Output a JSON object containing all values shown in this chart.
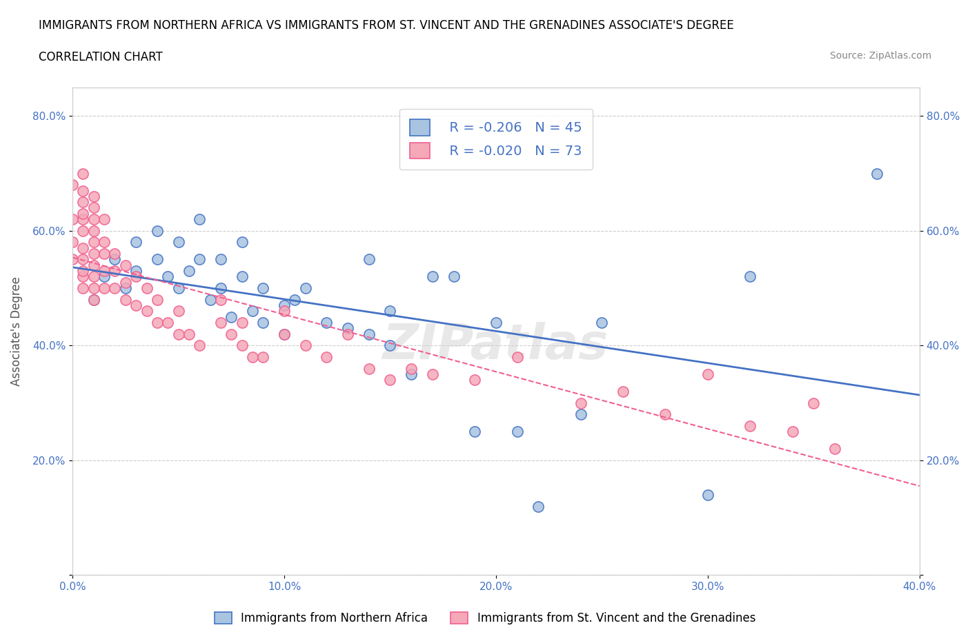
{
  "title_line1": "IMMIGRANTS FROM NORTHERN AFRICA VS IMMIGRANTS FROM ST. VINCENT AND THE GRENADINES ASSOCIATE'S DEGREE",
  "title_line2": "CORRELATION CHART",
  "source_text": "Source: ZipAtlas.com",
  "xlabel": "",
  "ylabel": "Associate's Degree",
  "xlim": [
    0.0,
    0.4
  ],
  "ylim": [
    0.0,
    0.85
  ],
  "xticks": [
    0.0,
    0.1,
    0.2,
    0.3,
    0.4
  ],
  "xticklabels": [
    "0.0%",
    "10.0%",
    "20.0%",
    "30.0%",
    "40.0%"
  ],
  "yticks": [
    0.0,
    0.2,
    0.4,
    0.6,
    0.8
  ],
  "yticklabels": [
    "",
    "20.0%",
    "40.0%",
    "60.0%",
    "80.0%"
  ],
  "color_blue": "#a8c4e0",
  "color_pink": "#f4a8b8",
  "line_blue": "#4472c4",
  "line_pink": "#f06090",
  "legend_R1": "R = -0.206",
  "legend_N1": "N = 45",
  "legend_R2": "R = -0.020",
  "legend_N2": "N = 73",
  "legend_label1": "Immigrants from Northern Africa",
  "legend_label2": "Immigrants from St. Vincent and the Grenadines",
  "watermark": "ZIPatlas",
  "R1": -0.206,
  "R2": -0.02,
  "blue_scatter_x": [
    0.01,
    0.015,
    0.02,
    0.025,
    0.03,
    0.03,
    0.04,
    0.04,
    0.045,
    0.05,
    0.05,
    0.055,
    0.06,
    0.06,
    0.065,
    0.07,
    0.07,
    0.075,
    0.08,
    0.08,
    0.085,
    0.09,
    0.09,
    0.1,
    0.1,
    0.105,
    0.11,
    0.12,
    0.13,
    0.14,
    0.14,
    0.15,
    0.15,
    0.16,
    0.17,
    0.18,
    0.19,
    0.2,
    0.21,
    0.22,
    0.24,
    0.25,
    0.3,
    0.32,
    0.38
  ],
  "blue_scatter_y": [
    0.48,
    0.52,
    0.55,
    0.5,
    0.53,
    0.58,
    0.55,
    0.6,
    0.52,
    0.5,
    0.58,
    0.53,
    0.55,
    0.62,
    0.48,
    0.5,
    0.55,
    0.45,
    0.52,
    0.58,
    0.46,
    0.44,
    0.5,
    0.47,
    0.42,
    0.48,
    0.5,
    0.44,
    0.43,
    0.42,
    0.55,
    0.4,
    0.46,
    0.35,
    0.52,
    0.52,
    0.25,
    0.44,
    0.25,
    0.12,
    0.28,
    0.44,
    0.14,
    0.52,
    0.7
  ],
  "pink_scatter_x": [
    0.0,
    0.0,
    0.0,
    0.0,
    0.005,
    0.005,
    0.005,
    0.005,
    0.005,
    0.005,
    0.005,
    0.005,
    0.005,
    0.005,
    0.005,
    0.01,
    0.01,
    0.01,
    0.01,
    0.01,
    0.01,
    0.01,
    0.01,
    0.01,
    0.01,
    0.015,
    0.015,
    0.015,
    0.015,
    0.015,
    0.02,
    0.02,
    0.02,
    0.025,
    0.025,
    0.025,
    0.03,
    0.03,
    0.035,
    0.035,
    0.04,
    0.04,
    0.045,
    0.05,
    0.05,
    0.055,
    0.06,
    0.07,
    0.07,
    0.075,
    0.08,
    0.08,
    0.085,
    0.09,
    0.1,
    0.1,
    0.11,
    0.12,
    0.13,
    0.14,
    0.15,
    0.16,
    0.17,
    0.19,
    0.21,
    0.24,
    0.26,
    0.28,
    0.3,
    0.32,
    0.34,
    0.35,
    0.36
  ],
  "pink_scatter_y": [
    0.55,
    0.58,
    0.62,
    0.68,
    0.5,
    0.52,
    0.53,
    0.55,
    0.57,
    0.6,
    0.62,
    0.63,
    0.65,
    0.67,
    0.7,
    0.48,
    0.5,
    0.52,
    0.54,
    0.56,
    0.58,
    0.6,
    0.62,
    0.64,
    0.66,
    0.5,
    0.53,
    0.56,
    0.58,
    0.62,
    0.5,
    0.53,
    0.56,
    0.48,
    0.51,
    0.54,
    0.47,
    0.52,
    0.46,
    0.5,
    0.44,
    0.48,
    0.44,
    0.42,
    0.46,
    0.42,
    0.4,
    0.44,
    0.48,
    0.42,
    0.4,
    0.44,
    0.38,
    0.38,
    0.42,
    0.46,
    0.4,
    0.38,
    0.42,
    0.36,
    0.34,
    0.36,
    0.35,
    0.34,
    0.38,
    0.3,
    0.32,
    0.28,
    0.35,
    0.26,
    0.25,
    0.3,
    0.22
  ]
}
